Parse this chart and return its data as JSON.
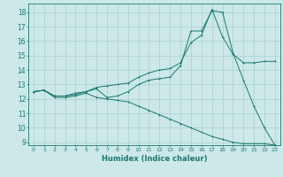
{
  "title": "",
  "xlabel": "Humidex (Indice chaleur)",
  "bg_color": "#cce8e8",
  "grid_color": "#aacfcf",
  "line_color": "#1a7a6e",
  "xlim": [
    -0.5,
    23.5
  ],
  "ylim": [
    8.8,
    18.6
  ],
  "yticks": [
    9,
    10,
    11,
    12,
    13,
    14,
    15,
    16,
    17,
    18
  ],
  "xticks": [
    0,
    1,
    2,
    3,
    4,
    5,
    6,
    7,
    8,
    9,
    10,
    11,
    12,
    13,
    14,
    15,
    16,
    17,
    18,
    19,
    20,
    21,
    22,
    23
  ],
  "line1_x": [
    0,
    1,
    2,
    3,
    4,
    5,
    6,
    7,
    8,
    9,
    10,
    11,
    12,
    13,
    14,
    15,
    16,
    17,
    18,
    19,
    20,
    21,
    22,
    23
  ],
  "line1_y": [
    12.5,
    12.6,
    12.2,
    12.2,
    12.3,
    12.5,
    12.7,
    12.1,
    12.2,
    12.5,
    13.0,
    13.3,
    13.4,
    13.5,
    14.3,
    16.7,
    16.7,
    18.1,
    18.0,
    15.2,
    13.3,
    11.5,
    10.0,
    8.8
  ],
  "line2_x": [
    0,
    1,
    2,
    3,
    4,
    5,
    6,
    7,
    8,
    9,
    10,
    11,
    12,
    13,
    14,
    15,
    16,
    17,
    18,
    19,
    20,
    21,
    22,
    23
  ],
  "line2_y": [
    12.5,
    12.6,
    12.2,
    12.2,
    12.4,
    12.5,
    12.8,
    12.9,
    13.0,
    13.1,
    13.5,
    13.8,
    14.0,
    14.1,
    14.5,
    15.9,
    16.4,
    18.2,
    16.3,
    15.1,
    14.5,
    14.5,
    14.6,
    14.6
  ],
  "line3_x": [
    0,
    1,
    2,
    3,
    4,
    5,
    6,
    7,
    8,
    9,
    10,
    11,
    12,
    13,
    14,
    15,
    16,
    17,
    18,
    19,
    20,
    21,
    22,
    23
  ],
  "line3_y": [
    12.5,
    12.6,
    12.1,
    12.1,
    12.2,
    12.4,
    12.1,
    12.0,
    11.9,
    11.8,
    11.5,
    11.2,
    10.9,
    10.6,
    10.3,
    10.0,
    9.7,
    9.4,
    9.2,
    9.0,
    8.9,
    8.9,
    8.9,
    8.8
  ]
}
